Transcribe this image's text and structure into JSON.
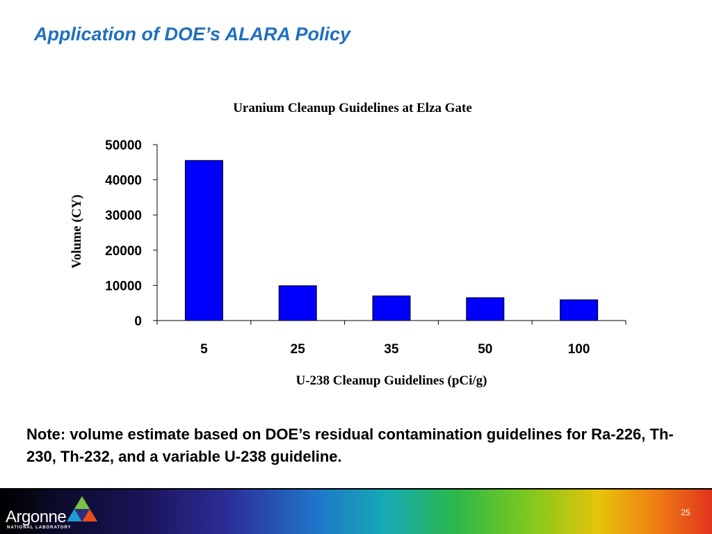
{
  "slide": {
    "title": "Application of DOE’s ALARA Policy",
    "note": "Note: volume estimate based on DOE’s residual contamination guidelines for Ra-226, Th-230, Th-232, and a variable U-238 guideline.",
    "page_number": "25"
  },
  "logo": {
    "name": "Argonne",
    "subtitle": "NATIONAL LABORATORY"
  },
  "colors": {
    "bar": "#0000ff",
    "title": "#1f6fc0"
  },
  "chart_data": {
    "type": "bar",
    "title": "Uranium Cleanup Guidelines at Elza Gate",
    "xlabel": "U-238 Cleanup Guidelines (pCi/g)",
    "ylabel": "Volume (CY)",
    "categories": [
      "5",
      "25",
      "35",
      "50",
      "100"
    ],
    "values": [
      45500,
      9900,
      7000,
      6500,
      5900
    ],
    "ylim": [
      0,
      50000
    ],
    "yticks": [
      "0",
      "10000",
      "20000",
      "30000",
      "40000",
      "50000"
    ],
    "grid": false,
    "legend": "none"
  }
}
